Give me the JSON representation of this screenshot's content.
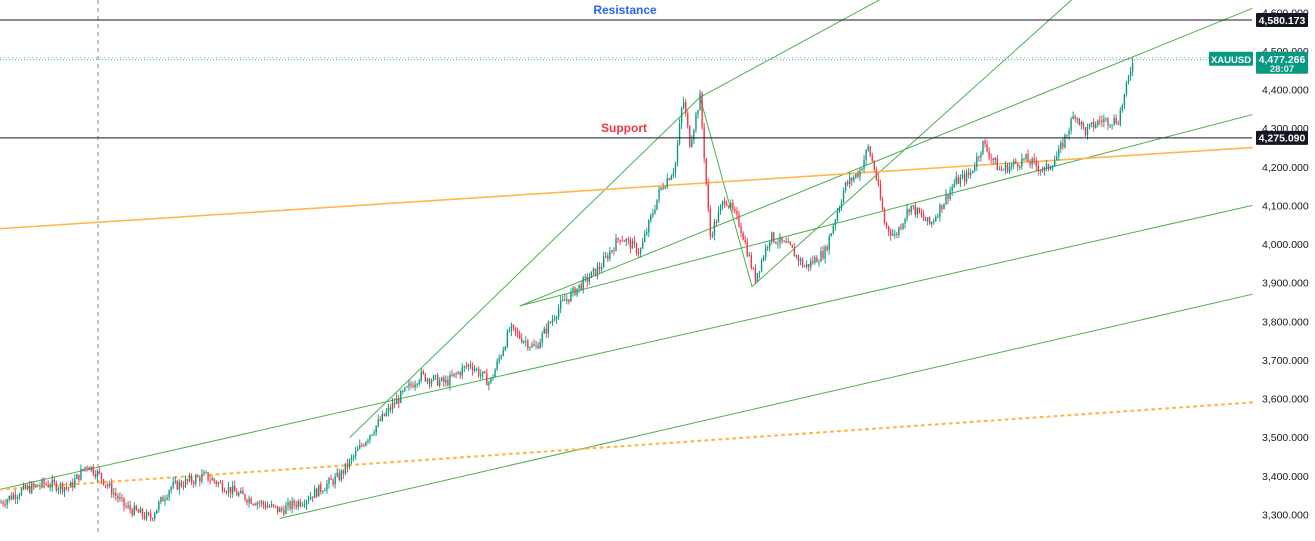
{
  "chart_data": {
    "type": "candlestick",
    "symbol": "XAUUSD",
    "last_price_label": "4,477.266",
    "current_price_hidden_label": "28:07",
    "ylim": [
      3270,
      4640
    ],
    "y_ticks": [
      {
        "v": 3300,
        "label": "3,300.000"
      },
      {
        "v": 3400,
        "label": "3,400.000"
      },
      {
        "v": 3500,
        "label": "3,500.000"
      },
      {
        "v": 3600,
        "label": "3,600.000"
      },
      {
        "v": 3700,
        "label": "3,700.000"
      },
      {
        "v": 3800,
        "label": "3,800.000"
      },
      {
        "v": 3900,
        "label": "3,900.000"
      },
      {
        "v": 4000,
        "label": "4,000.000"
      },
      {
        "v": 4100,
        "label": "4,100.000"
      },
      {
        "v": 4200,
        "label": "4,200.000"
      },
      {
        "v": 4300,
        "label": "4,300.000"
      },
      {
        "v": 4400,
        "label": "4,400.000"
      },
      {
        "v": 4500,
        "label": "4,500.000"
      },
      {
        "v": 4600,
        "label": "4,600.000"
      }
    ],
    "horizontal_levels": [
      {
        "name": "Resistance",
        "value": 4580.173,
        "tag": "4,580.173",
        "color": "#131722",
        "label_color": "#2962ff"
      },
      {
        "name": "Support",
        "value": 4275.09,
        "tag": "4,275.090",
        "color": "#131722",
        "label_color": "#f23645"
      }
    ],
    "price_path": [
      [
        0,
        3330
      ],
      [
        20,
        3360
      ],
      [
        45,
        3380
      ],
      [
        70,
        3370
      ],
      [
        87,
        3430
      ],
      [
        100,
        3400
      ],
      [
        125,
        3320
      ],
      [
        150,
        3290
      ],
      [
        170,
        3370
      ],
      [
        205,
        3400
      ],
      [
        240,
        3350
      ],
      [
        280,
        3310
      ],
      [
        305,
        3340
      ],
      [
        340,
        3400
      ],
      [
        370,
        3510
      ],
      [
        395,
        3590
      ],
      [
        420,
        3660
      ],
      [
        445,
        3640
      ],
      [
        470,
        3690
      ],
      [
        490,
        3640
      ],
      [
        510,
        3780
      ],
      [
        535,
        3730
      ],
      [
        560,
        3840
      ],
      [
        575,
        3880
      ],
      [
        600,
        3940
      ],
      [
        620,
        4020
      ],
      [
        640,
        3980
      ],
      [
        660,
        4140
      ],
      [
        675,
        4200
      ],
      [
        683,
        4380
      ],
      [
        690,
        4260
      ],
      [
        700,
        4380
      ],
      [
        710,
        4020
      ],
      [
        725,
        4120
      ],
      [
        740,
        4050
      ],
      [
        755,
        3910
      ],
      [
        770,
        4020
      ],
      [
        790,
        3990
      ],
      [
        805,
        3940
      ],
      [
        825,
        3980
      ],
      [
        845,
        4150
      ],
      [
        860,
        4190
      ],
      [
        868,
        4250
      ],
      [
        875,
        4190
      ],
      [
        885,
        4050
      ],
      [
        895,
        4020
      ],
      [
        910,
        4100
      ],
      [
        930,
        4050
      ],
      [
        955,
        4160
      ],
      [
        970,
        4180
      ],
      [
        983,
        4260
      ],
      [
        1000,
        4190
      ],
      [
        1025,
        4220
      ],
      [
        1045,
        4190
      ],
      [
        1058,
        4230
      ],
      [
        1075,
        4340
      ],
      [
        1085,
        4290
      ],
      [
        1100,
        4320
      ],
      [
        1118,
        4320
      ],
      [
        1128,
        4420
      ],
      [
        1133,
        4485
      ]
    ],
    "trendlines": [
      {
        "color": "#4caf50",
        "style": "solid",
        "x1": 0,
        "v1": 3365,
        "x2": 1252,
        "v2": 4100
      },
      {
        "color": "#4caf50",
        "style": "solid",
        "x1": 280,
        "v1": 3290,
        "x2": 1252,
        "v2": 3870
      },
      {
        "color": "#4caf50",
        "style": "solid",
        "x1": 520,
        "v1": 3840,
        "x2": 1252,
        "v2": 4335
      },
      {
        "color": "#4caf50",
        "style": "solid",
        "x1": 700,
        "v1": 4380,
        "x2": 885,
        "v2": 4640
      },
      {
        "color": "#4caf50",
        "style": "solid",
        "x1": 752,
        "v1": 3890,
        "x2": 1075,
        "v2": 4640
      },
      {
        "color": "#4caf50",
        "style": "solid",
        "x1": 700,
        "v1": 4380,
        "x2": 752,
        "v2": 3890
      },
      {
        "color": "#4caf50",
        "style": "solid",
        "x1": 350,
        "v1": 3500,
        "x2": 700,
        "v2": 4380
      },
      {
        "color": "#4caf50",
        "style": "solid",
        "x1": 520,
        "v1": 3840,
        "x2": 1252,
        "v2": 4610
      },
      {
        "color": "#ffb74d",
        "style": "solid",
        "x1": 0,
        "v1": 4040,
        "x2": 1252,
        "v2": 4250
      },
      {
        "color": "#ffb74d",
        "style": "dotted",
        "x1": 0,
        "v1": 3365,
        "x2": 1252,
        "v2": 3590
      }
    ]
  }
}
